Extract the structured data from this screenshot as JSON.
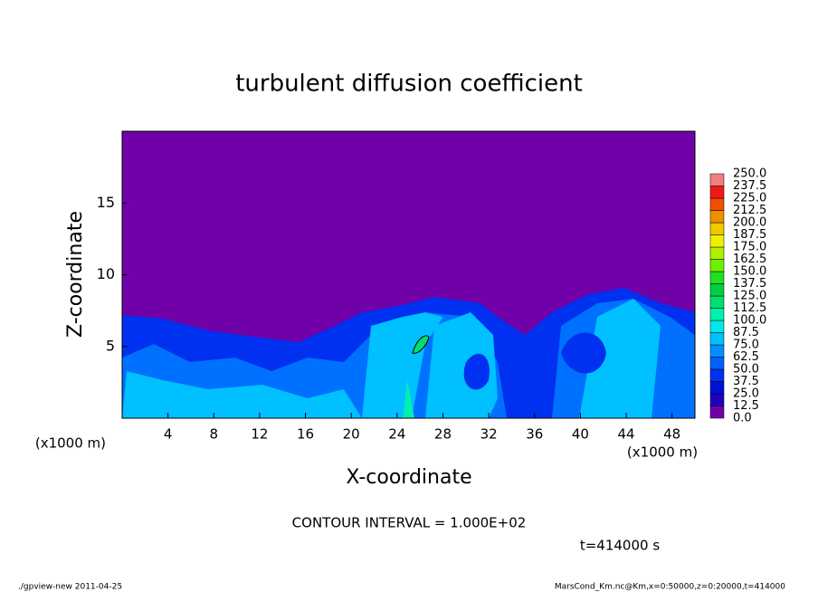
{
  "chart_data": {
    "type": "contour",
    "title": "turbulent diffusion coefficient",
    "x_label": "X-coordinate",
    "y_label": "Z-coordinate",
    "x_unit": "(x1000 m)",
    "y_unit": "(x1000 m)",
    "xlim": [
      0,
      50
    ],
    "xticks": [
      4,
      8,
      12,
      16,
      20,
      24,
      28,
      32,
      36,
      40,
      44,
      48
    ],
    "ylim": [
      0,
      20
    ],
    "yticks": [
      5,
      10,
      15
    ],
    "contour_interval": "CONTOUR INTERVAL = 1.000E+02",
    "time": "t=414000 s",
    "footer_left": "./gpview-new  2011-04-25",
    "footer_right": "MarsCond_Km.nc@Km,x=0:50000,z=0:20000,t=414000",
    "colorbar": {
      "levels": [
        {
          "value": 0,
          "label": "0.0"
        },
        12.5,
        {
          "value": 25,
          "label": "25.0"
        },
        37.5,
        {
          "value": 50,
          "label": "50.0"
        },
        62.5,
        {
          "value": 75,
          "label": "75.0"
        },
        87.5,
        {
          "value": 100,
          "label": "100.0"
        },
        112.5,
        {
          "value": 125,
          "label": "125.0"
        },
        137.5,
        {
          "value": 150,
          "label": "150.0"
        },
        162.5,
        {
          "value": 175,
          "label": "175.0"
        },
        187.5,
        {
          "value": 200,
          "label": "200.0"
        },
        212.5,
        {
          "value": 225,
          "label": "225.0"
        },
        237.5,
        {
          "value": 250,
          "label": "250.0"
        }
      ],
      "colors": [
        "#7000a8",
        "#2000c0",
        "#0010d8",
        "#0030f0",
        "#0060ff",
        "#0090ff",
        "#00c0ff",
        "#00e8e8",
        "#00f0b0",
        "#00e070",
        "#00d040",
        "#20e020",
        "#70f000",
        "#b0f000",
        "#f0f000",
        "#f0c800",
        "#f09000",
        "#f05000",
        "#f01818",
        "#f08080"
      ]
    }
  }
}
